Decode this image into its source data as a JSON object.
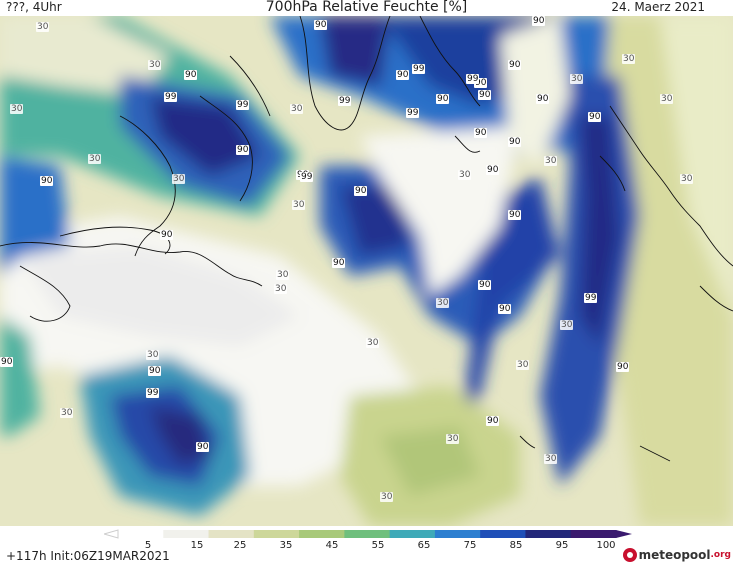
{
  "header": {
    "left": "???, 4Uhr",
    "title": "700hPa Relative Feuchte [%]",
    "right": "24. Maerz 2021"
  },
  "footer": {
    "left": "+117h Init:06Z19MAR2021",
    "logo_text": "meteopool",
    "logo_suffix": ".org"
  },
  "colorbar": {
    "ticks": [
      "5",
      "15",
      "25",
      "35",
      "45",
      "55",
      "65",
      "75",
      "85",
      "95",
      "100"
    ],
    "colors": [
      "#ffffff",
      "#f1f1ec",
      "#e4e3c5",
      "#cdd79a",
      "#a8c97a",
      "#6fbf7d",
      "#3faab8",
      "#2d7fd0",
      "#1f4fb8",
      "#23277a",
      "#3a1a6e"
    ]
  },
  "contour_labels": [
    {
      "text": "90"
    },
    {
      "text": "90"
    },
    {
      "text": "90"
    },
    {
      "text": "90"
    },
    {
      "text": "99"
    },
    {
      "text": "99"
    },
    {
      "text": "99"
    },
    {
      "text": "90"
    },
    {
      "text": "90"
    },
    {
      "text": "99"
    },
    {
      "text": "99"
    },
    {
      "text": "90"
    },
    {
      "text": "90"
    },
    {
      "text": "90"
    },
    {
      "text": "99"
    },
    {
      "text": "99"
    },
    {
      "text": "90"
    },
    {
      "text": "90"
    },
    {
      "text": "90"
    },
    {
      "text": "90"
    },
    {
      "text": "90"
    },
    {
      "text": "90"
    },
    {
      "text": "90"
    },
    {
      "text": "90"
    },
    {
      "text": "90"
    },
    {
      "text": "90"
    },
    {
      "text": "90"
    },
    {
      "text": "90"
    },
    {
      "text": "99"
    },
    {
      "text": "90"
    },
    {
      "text": "90"
    },
    {
      "text": "90"
    },
    {
      "text": "90"
    },
    {
      "text": "90"
    },
    {
      "text": "99"
    },
    {
      "text": "90"
    },
    {
      "text": "30"
    },
    {
      "text": "30"
    },
    {
      "text": "30"
    },
    {
      "text": "30"
    },
    {
      "text": "30"
    },
    {
      "text": "30"
    },
    {
      "text": "30"
    },
    {
      "text": "30"
    },
    {
      "text": "30"
    },
    {
      "text": "30"
    },
    {
      "text": "30"
    },
    {
      "text": "30"
    },
    {
      "text": "30"
    },
    {
      "text": "30"
    },
    {
      "text": "30"
    },
    {
      "text": "30"
    },
    {
      "text": "30"
    },
    {
      "text": "30"
    },
    {
      "text": "30"
    },
    {
      "text": "30"
    },
    {
      "text": "30"
    },
    {
      "text": "30"
    },
    {
      "text": "30"
    },
    {
      "text": "30"
    }
  ]
}
